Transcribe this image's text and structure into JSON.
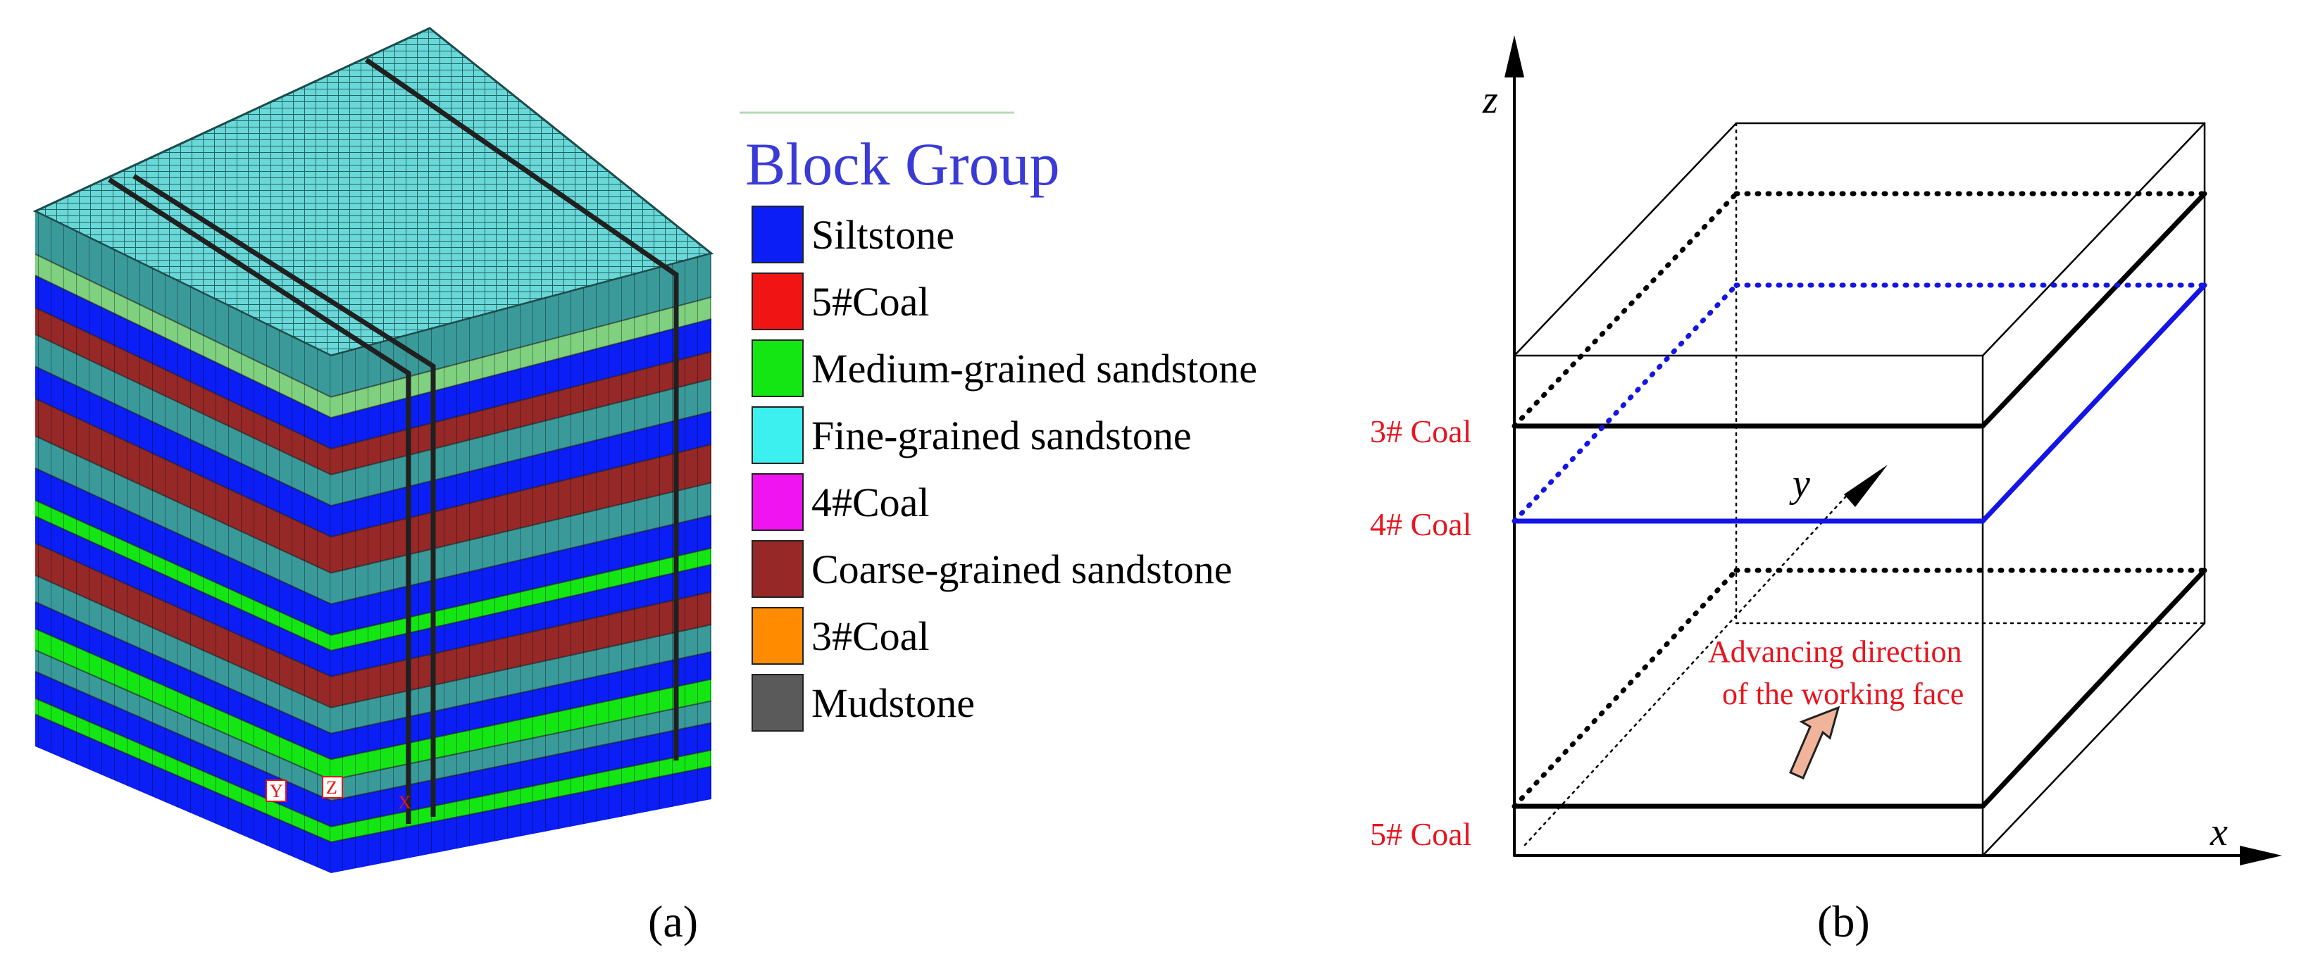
{
  "panel_a": {
    "caption": "(a)",
    "legend": {
      "title": "Block Group",
      "title_color": "#3a3ad6",
      "items": [
        {
          "label": "Siltstone",
          "color": "#0a1ef5"
        },
        {
          "label": "5#Coal",
          "color": "#f01414"
        },
        {
          "label": "Medium-grained sandstone",
          "color": "#14e614"
        },
        {
          "label": "Fine-grained sandstone",
          "color": "#3cf0f0"
        },
        {
          "label": "4#Coal",
          "color": "#f014f0"
        },
        {
          "label": "Coarse-grained sandstone",
          "color": "#962828"
        },
        {
          "label": "3#Coal",
          "color": "#ff8c00"
        },
        {
          "label": "Mudstone",
          "color": "#5a5a5a"
        }
      ]
    },
    "axis_markers": {
      "y": "Y",
      "z": "Z",
      "x": "X"
    }
  },
  "panel_b": {
    "caption": "(b)",
    "axes": {
      "x": "x",
      "y": "y",
      "z": "z"
    },
    "seam_labels": {
      "coal3": "3# Coal",
      "coal4": "4# Coal",
      "coal5": "5# Coal"
    },
    "annotation": {
      "line1": "Advancing direction",
      "line2": "of the working face"
    },
    "colors": {
      "label_red": "#e8141e",
      "seam_blue": "#1414e6",
      "arrow_fill": "#f0b49a"
    }
  }
}
